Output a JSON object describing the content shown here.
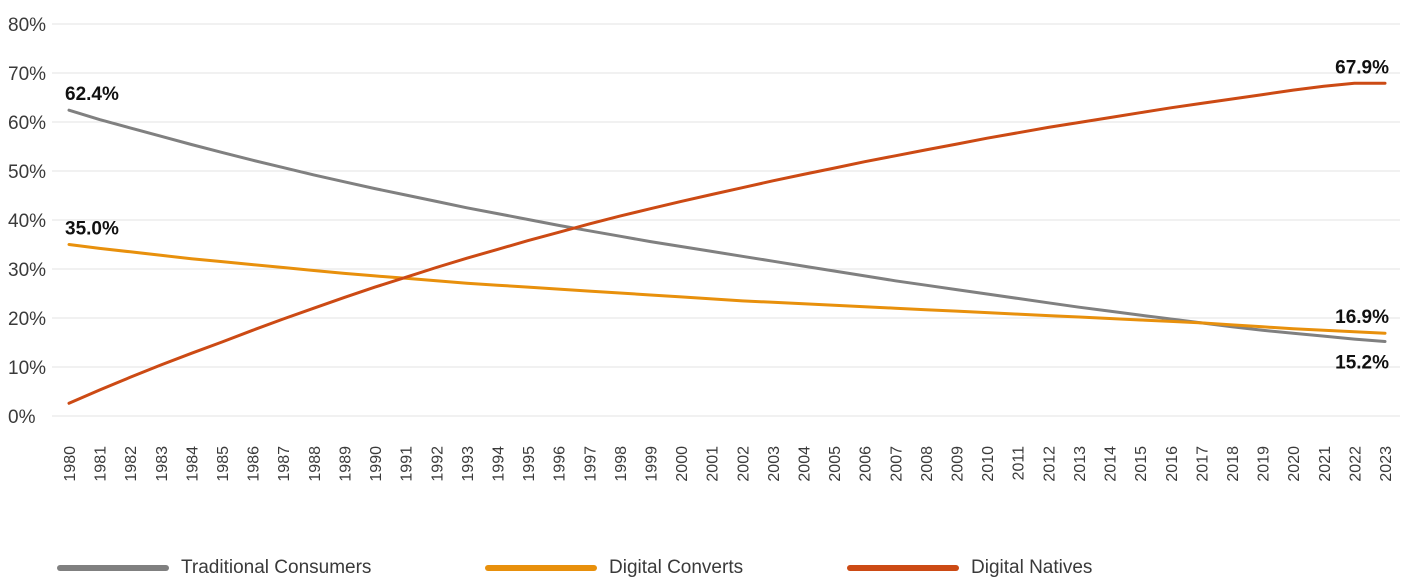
{
  "chart_data": {
    "type": "line",
    "title": "",
    "xlabel": "",
    "ylabel": "",
    "ylim": [
      0,
      80
    ],
    "y_ticks": [
      "0%",
      "10%",
      "20%",
      "30%",
      "40%",
      "50%",
      "60%",
      "70%",
      "80%"
    ],
    "grid": true,
    "legend_position": "bottom",
    "x": [
      1980,
      1981,
      1982,
      1983,
      1984,
      1985,
      1986,
      1987,
      1988,
      1989,
      1990,
      1991,
      1992,
      1993,
      1994,
      1995,
      1996,
      1997,
      1998,
      1999,
      2000,
      2001,
      2002,
      2003,
      2004,
      2005,
      2006,
      2007,
      2008,
      2009,
      2010,
      2011,
      2012,
      2013,
      2014,
      2015,
      2016,
      2017,
      2018,
      2019,
      2020,
      2021,
      2022,
      2023
    ],
    "series": [
      {
        "name": "Traditional Consumers",
        "color": "#808080",
        "values": [
          62.4,
          60.5,
          58.8,
          57.1,
          55.4,
          53.8,
          52.2,
          50.7,
          49.2,
          47.8,
          46.4,
          45.1,
          43.8,
          42.5,
          41.3,
          40.1,
          38.9,
          37.8,
          36.7,
          35.6,
          34.6,
          33.6,
          32.6,
          31.6,
          30.6,
          29.6,
          28.6,
          27.6,
          26.7,
          25.8,
          24.9,
          24.0,
          23.1,
          22.2,
          21.4,
          20.6,
          19.8,
          19.0,
          18.2,
          17.5,
          16.9,
          16.3,
          15.7,
          15.2
        ]
      },
      {
        "name": "Digital Converts",
        "color": "#E8900C",
        "values": [
          35.0,
          34.2,
          33.5,
          32.8,
          32.1,
          31.5,
          30.9,
          30.3,
          29.7,
          29.1,
          28.6,
          28.1,
          27.6,
          27.1,
          26.7,
          26.3,
          25.9,
          25.5,
          25.1,
          24.7,
          24.3,
          23.9,
          23.5,
          23.2,
          22.9,
          22.6,
          22.3,
          22.0,
          21.7,
          21.4,
          21.1,
          20.8,
          20.5,
          20.2,
          19.9,
          19.6,
          19.3,
          19.0,
          18.6,
          18.2,
          17.8,
          17.5,
          17.2,
          16.9
        ]
      },
      {
        "name": "Digital Natives",
        "color": "#CC4A14",
        "values": [
          2.6,
          5.3,
          7.9,
          10.4,
          12.8,
          15.1,
          17.5,
          19.8,
          22.0,
          24.2,
          26.3,
          28.3,
          30.3,
          32.2,
          34.0,
          35.8,
          37.5,
          39.2,
          40.8,
          42.3,
          43.8,
          45.2,
          46.6,
          48.0,
          49.3,
          50.6,
          51.9,
          53.1,
          54.3,
          55.5,
          56.7,
          57.8,
          58.9,
          59.9,
          60.9,
          61.9,
          62.9,
          63.8,
          64.7,
          65.6,
          66.5,
          67.3,
          67.9,
          67.9
        ]
      }
    ],
    "data_labels": [
      {
        "series": 0,
        "index": 0,
        "text": "62.4%"
      },
      {
        "series": 1,
        "index": 0,
        "text": "35.0%"
      },
      {
        "series": 2,
        "index": 43,
        "text": "67.9%"
      },
      {
        "series": 1,
        "index": 43,
        "text": "16.9%"
      },
      {
        "series": 0,
        "index": 43,
        "text": "15.2%"
      }
    ]
  },
  "legend": {
    "items": [
      {
        "label": "Traditional Consumers",
        "color": "#808080"
      },
      {
        "label": "Digital Converts",
        "color": "#E8900C"
      },
      {
        "label": "Digital Natives",
        "color": "#CC4A14"
      }
    ]
  }
}
